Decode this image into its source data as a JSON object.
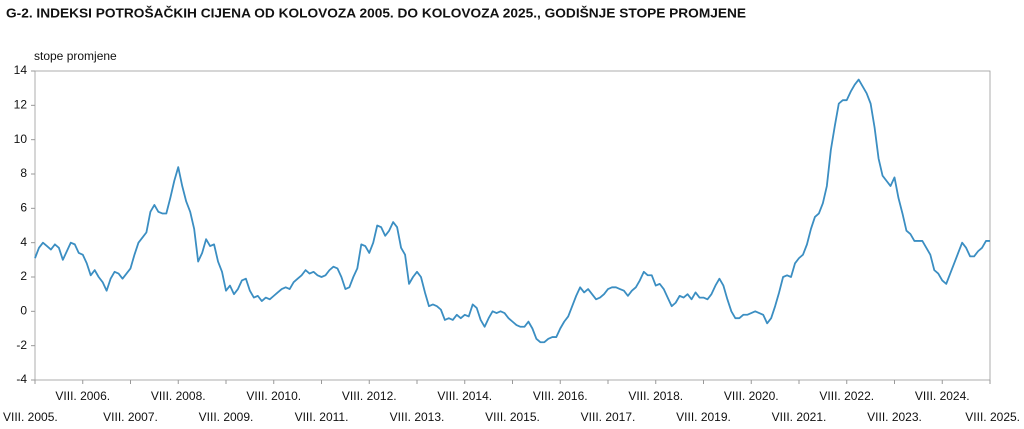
{
  "chart_data": {
    "type": "line",
    "title": "G-2.  INDEKSI POTROŠAČKIH CIJENA OD KOLOVOZA 2005. DO KOLOVOZA 2025., GODIŠNJE STOPE PROMJENE",
    "y_label": "stope promjene",
    "categories": [
      "VIII. 2005.",
      null,
      null,
      null,
      null,
      null,
      null,
      null,
      null,
      null,
      null,
      null,
      "VIII. 2006.",
      null,
      null,
      null,
      null,
      null,
      null,
      null,
      null,
      null,
      null,
      null,
      "VIII. 2007.",
      null,
      null,
      null,
      null,
      null,
      null,
      null,
      null,
      null,
      null,
      null,
      "VIII. 2008.",
      null,
      null,
      null,
      null,
      null,
      null,
      null,
      null,
      null,
      null,
      null,
      "VIII. 2009.",
      null,
      null,
      null,
      null,
      null,
      null,
      null,
      null,
      null,
      null,
      null,
      "VIII. 2010.",
      null,
      null,
      null,
      null,
      null,
      null,
      null,
      null,
      null,
      null,
      null,
      "VIII. 2011.",
      null,
      null,
      null,
      null,
      null,
      null,
      null,
      null,
      null,
      null,
      null,
      "VIII. 2012.",
      null,
      null,
      null,
      null,
      null,
      null,
      null,
      null,
      null,
      null,
      null,
      "VIII. 2013.",
      null,
      null,
      null,
      null,
      null,
      null,
      null,
      null,
      null,
      null,
      null,
      "VIII. 2014.",
      null,
      null,
      null,
      null,
      null,
      null,
      null,
      null,
      null,
      null,
      null,
      "VIII. 2015.",
      null,
      null,
      null,
      null,
      null,
      null,
      null,
      null,
      null,
      null,
      null,
      "VIII. 2016.",
      null,
      null,
      null,
      null,
      null,
      null,
      null,
      null,
      null,
      null,
      null,
      "VIII. 2017.",
      null,
      null,
      null,
      null,
      null,
      null,
      null,
      null,
      null,
      null,
      null,
      "VIII. 2018.",
      null,
      null,
      null,
      null,
      null,
      null,
      null,
      null,
      null,
      null,
      null,
      "VIII. 2019.",
      null,
      null,
      null,
      null,
      null,
      null,
      null,
      null,
      null,
      null,
      null,
      "VIII. 2020.",
      null,
      null,
      null,
      null,
      null,
      null,
      null,
      null,
      null,
      null,
      null,
      "VIII. 2021.",
      null,
      null,
      null,
      null,
      null,
      null,
      null,
      null,
      null,
      null,
      null,
      "VIII. 2022.",
      null,
      null,
      null,
      null,
      null,
      null,
      null,
      null,
      null,
      null,
      null,
      "VIII. 2023.",
      null,
      null,
      null,
      null,
      null,
      null,
      null,
      null,
      null,
      null,
      null,
      "VIII. 2024.",
      null,
      null,
      null,
      null,
      null,
      null,
      null,
      null,
      null,
      null,
      null,
      "VIII. 2025."
    ],
    "series": [
      {
        "color": "#3b8ec2",
        "values": [
          3.1,
          3.7,
          4.0,
          3.8,
          3.6,
          3.9,
          3.7,
          3.0,
          3.5,
          4.0,
          3.9,
          3.4,
          3.3,
          2.8,
          2.1,
          2.4,
          2.0,
          1.7,
          1.2,
          1.9,
          2.3,
          2.2,
          1.9,
          2.2,
          2.5,
          3.3,
          4.0,
          4.3,
          4.6,
          5.8,
          6.2,
          5.8,
          5.7,
          5.7,
          6.6,
          7.6,
          8.4,
          7.3,
          6.4,
          5.8,
          4.8,
          2.9,
          3.4,
          4.2,
          3.8,
          3.9,
          2.9,
          2.3,
          1.2,
          1.5,
          1.0,
          1.3,
          1.8,
          1.9,
          1.2,
          0.8,
          0.9,
          0.6,
          0.8,
          0.7,
          0.9,
          1.1,
          1.3,
          1.4,
          1.3,
          1.7,
          1.9,
          2.1,
          2.4,
          2.2,
          2.3,
          2.1,
          2.0,
          2.1,
          2.4,
          2.6,
          2.5,
          2.0,
          1.3,
          1.4,
          2.0,
          2.5,
          3.9,
          3.8,
          3.4,
          4.0,
          5.0,
          4.9,
          4.4,
          4.7,
          5.2,
          4.9,
          3.7,
          3.3,
          1.6,
          2.0,
          2.3,
          2.0,
          1.1,
          0.3,
          0.4,
          0.3,
          0.1,
          -0.5,
          -0.4,
          -0.5,
          -0.2,
          -0.4,
          -0.2,
          -0.3,
          0.4,
          0.2,
          -0.5,
          -0.9,
          -0.4,
          0.0,
          -0.1,
          0.0,
          -0.1,
          -0.4,
          -0.6,
          -0.8,
          -0.9,
          -0.9,
          -0.6,
          -1.0,
          -1.6,
          -1.8,
          -1.8,
          -1.6,
          -1.5,
          -1.5,
          -1.0,
          -0.6,
          -0.3,
          0.3,
          0.9,
          1.4,
          1.1,
          1.3,
          1.0,
          0.7,
          0.8,
          1.0,
          1.3,
          1.4,
          1.4,
          1.3,
          1.2,
          0.9,
          1.2,
          1.4,
          1.8,
          2.3,
          2.1,
          2.1,
          1.5,
          1.6,
          1.3,
          0.8,
          0.3,
          0.5,
          0.9,
          0.8,
          1.0,
          0.7,
          1.1,
          0.8,
          0.8,
          0.7,
          1.0,
          1.5,
          1.9,
          1.5,
          0.7,
          0.0,
          -0.4,
          -0.4,
          -0.2,
          -0.2,
          -0.1,
          0.0,
          -0.1,
          -0.2,
          -0.7,
          -0.4,
          0.3,
          1.1,
          2.0,
          2.1,
          2.0,
          2.8,
          3.1,
          3.3,
          3.9,
          4.8,
          5.5,
          5.7,
          6.3,
          7.3,
          9.4,
          10.8,
          12.1,
          12.3,
          12.3,
          12.8,
          13.2,
          13.5,
          13.1,
          12.7,
          12.1,
          10.7,
          8.9,
          7.9,
          7.6,
          7.3,
          7.8,
          6.6,
          5.7,
          4.7,
          4.5,
          4.1,
          4.1,
          4.1,
          3.7,
          3.3,
          2.4,
          2.2,
          1.8,
          1.6,
          2.2,
          2.8,
          3.4,
          4.0,
          3.7,
          3.2,
          3.2,
          3.5,
          3.7,
          4.1,
          4.1
        ]
      }
    ],
    "ylim": [
      -4,
      14
    ],
    "yticks": [
      -4,
      -2,
      0,
      2,
      4,
      6,
      8,
      10,
      12,
      14
    ],
    "grid": false
  }
}
